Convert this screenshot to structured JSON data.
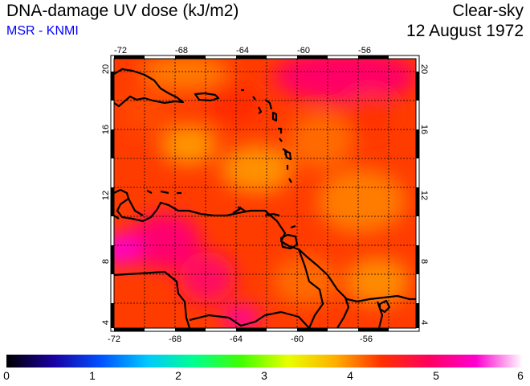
{
  "header": {
    "title": "DNA-damage UV dose (kJ/m2)",
    "subtitle": "MSR - KNMI",
    "mode": "Clear-sky",
    "date": "12 August 1972"
  },
  "map": {
    "region": "Caribbean Sea / northern South America",
    "lon_range": [
      -73,
      -53
    ],
    "lat_range": [
      3.5,
      20.5
    ],
    "grid_lines": "dotted, every 2 degrees",
    "lon_ticks": [
      "-72",
      "-68",
      "-64",
      "-60",
      "-56"
    ],
    "lat_ticks": [
      "4",
      "8",
      "12",
      "16",
      "20"
    ],
    "field_colors": [
      "#ff2a00",
      "#ff4a00",
      "#ff6a00",
      "#ff9400",
      "#ff0066",
      "#ff00cc"
    ],
    "coastline_color": "#000000"
  },
  "colorbar": {
    "ticks": [
      "0",
      "1",
      "2",
      "3",
      "4",
      "5",
      "6"
    ],
    "range": [
      0,
      6
    ],
    "stops": [
      "#000000",
      "#1a00a0",
      "#0050ff",
      "#00c8ff",
      "#00ff90",
      "#40ff00",
      "#e8ff00",
      "#ffb000",
      "#ff3000",
      "#ff0060",
      "#ff00d0",
      "#ffffff"
    ]
  }
}
